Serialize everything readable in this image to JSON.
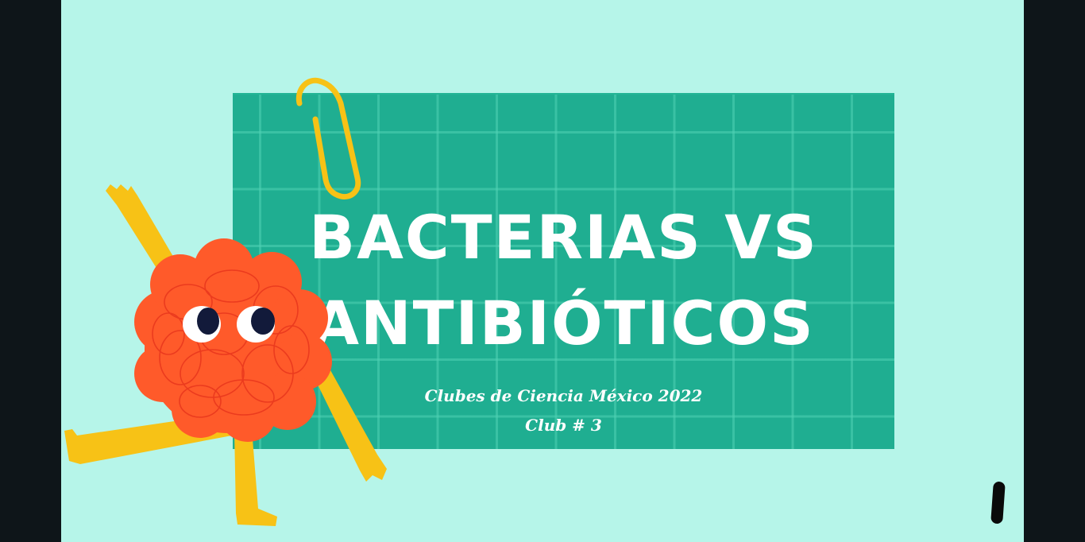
{
  "slide": {
    "title_line1": "BACTERIAS VS",
    "title_line2": "ANTIBIÓTICOS",
    "subtitle_line1": "Clubes de Ciencia México 2022",
    "subtitle_line2": "Club # 3"
  },
  "decor": {
    "board_color": "#1fae91",
    "background_color": "#b6f5e9",
    "mascot_body_color": "#ff5a2a",
    "mascot_limb_color": "#f7c216",
    "clip_color": "#f7c216",
    "icons": [
      "paperclip-icon",
      "bacteria-mascot",
      "pen-mark"
    ]
  }
}
